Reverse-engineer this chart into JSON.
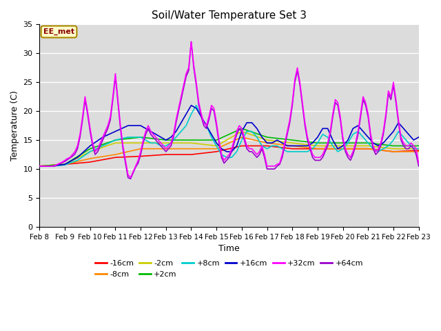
{
  "title": "Soil/Water Temperature Set 3",
  "xlabel": "Time",
  "ylabel": "Temperature (C)",
  "ylim": [
    0,
    35
  ],
  "background_color": "#dcdcdc",
  "annotation": "EE_met",
  "legend": [
    {
      "label": "-16cm",
      "color": "#ff0000"
    },
    {
      "label": "-8cm",
      "color": "#ff8800"
    },
    {
      "label": "-2cm",
      "color": "#cccc00"
    },
    {
      "label": "+2cm",
      "color": "#00bb00"
    },
    {
      "label": "+8cm",
      "color": "#00cccc"
    },
    {
      "label": "+16cm",
      "color": "#0000cc"
    },
    {
      "label": "+32cm",
      "color": "#ff00ff"
    },
    {
      "label": "+64cm",
      "color": "#9900cc"
    }
  ],
  "x_tick_labels": [
    "Feb 8",
    "Feb 9",
    "Feb 10",
    "Feb 11",
    "Feb 12",
    "Feb 13",
    "Feb 14",
    "Feb 15",
    "Feb 16",
    "Feb 17",
    "Feb 18",
    "Feb 19",
    "Feb 20",
    "Feb 21",
    "Feb 22",
    "Feb 23"
  ],
  "series": {
    "-16cm": {
      "color": "#ff0000",
      "x": [
        0,
        1,
        2,
        3,
        4,
        5,
        6,
        7,
        8,
        9,
        10,
        11,
        12,
        13,
        14,
        15
      ],
      "y": [
        10.5,
        10.8,
        11.2,
        12.0,
        12.2,
        12.5,
        12.5,
        13.0,
        14.0,
        14.0,
        13.5,
        13.5,
        13.5,
        13.5,
        13.0,
        13.2
      ]
    },
    "-8cm": {
      "color": "#ff8800",
      "x": [
        0,
        1,
        2,
        3,
        4,
        5,
        6,
        7,
        8,
        9,
        10,
        11,
        12,
        13,
        14,
        15
      ],
      "y": [
        10.5,
        10.8,
        11.8,
        12.5,
        13.5,
        13.5,
        13.5,
        13.5,
        15.5,
        14.5,
        14.0,
        13.5,
        13.5,
        13.5,
        13.0,
        13.0
      ]
    },
    "-2cm": {
      "color": "#cccc00",
      "x": [
        0,
        1,
        2,
        3,
        4,
        5,
        6,
        7,
        8,
        9,
        10,
        11,
        12,
        13,
        14,
        15
      ],
      "y": [
        10.5,
        10.8,
        13.0,
        14.5,
        14.5,
        14.5,
        14.5,
        14.0,
        16.5,
        15.0,
        14.5,
        14.0,
        14.0,
        14.0,
        13.5,
        13.5
      ]
    },
    "+2cm": {
      "color": "#00bb00",
      "x": [
        0,
        1,
        2,
        3,
        4,
        5,
        6,
        7,
        8,
        9,
        10,
        11,
        12,
        13,
        14,
        15
      ],
      "y": [
        10.5,
        10.8,
        13.5,
        15.0,
        15.5,
        15.0,
        15.0,
        15.0,
        17.0,
        15.5,
        15.0,
        14.5,
        14.5,
        14.5,
        14.0,
        14.0
      ]
    },
    "+8cm": {
      "color": "#00cccc",
      "x": [
        0,
        0.5,
        1.0,
        1.5,
        2.0,
        2.5,
        3.0,
        3.5,
        4.0,
        4.2,
        4.4,
        4.6,
        4.8,
        5.0,
        5.2,
        5.4,
        5.6,
        5.8,
        6.0,
        6.2,
        6.4,
        6.6,
        6.8,
        7.0,
        7.2,
        7.4,
        7.6,
        7.8,
        8.0,
        8.2,
        8.4,
        8.6,
        8.8,
        9.0,
        9.2,
        9.4,
        9.6,
        9.8,
        10.0,
        10.2,
        10.4,
        10.6,
        10.8,
        11.0,
        11.2,
        11.4,
        11.6,
        11.8,
        12.0,
        12.2,
        12.4,
        12.6,
        12.8,
        13.0,
        13.2,
        13.4,
        13.6,
        13.8,
        14.0,
        14.2,
        14.4,
        14.6,
        14.8,
        15.0
      ],
      "y": [
        10.5,
        10.5,
        10.7,
        11.5,
        13.0,
        14.0,
        15.0,
        15.5,
        15.5,
        15.0,
        14.5,
        14.5,
        14.0,
        14.0,
        14.5,
        15.5,
        16.5,
        17.5,
        19.5,
        21.0,
        19.0,
        17.5,
        15.5,
        14.0,
        12.5,
        12.0,
        12.0,
        13.0,
        15.0,
        16.5,
        16.5,
        15.5,
        14.0,
        13.5,
        14.0,
        14.0,
        13.5,
        13.0,
        13.0,
        13.0,
        13.0,
        13.0,
        13.5,
        14.5,
        16.0,
        15.5,
        14.0,
        13.0,
        13.5,
        14.5,
        16.0,
        16.5,
        15.5,
        14.5,
        13.5,
        13.0,
        13.5,
        14.0,
        15.0,
        16.5,
        15.5,
        14.5,
        13.5,
        13.5
      ]
    },
    "+16cm": {
      "color": "#0000cc",
      "x": [
        0,
        0.5,
        1.0,
        1.5,
        2.0,
        2.5,
        3.0,
        3.5,
        4.0,
        4.2,
        4.4,
        4.6,
        4.8,
        5.0,
        5.2,
        5.4,
        5.6,
        5.8,
        6.0,
        6.2,
        6.4,
        6.6,
        6.8,
        7.0,
        7.2,
        7.4,
        7.6,
        7.8,
        8.0,
        8.2,
        8.4,
        8.6,
        8.8,
        9.0,
        9.2,
        9.4,
        9.6,
        9.8,
        10.0,
        10.2,
        10.4,
        10.6,
        10.8,
        11.0,
        11.2,
        11.4,
        11.6,
        11.8,
        12.0,
        12.2,
        12.4,
        12.6,
        12.8,
        13.0,
        13.2,
        13.4,
        13.6,
        13.8,
        14.0,
        14.2,
        14.4,
        14.6,
        14.8,
        15.0
      ],
      "y": [
        10.5,
        10.5,
        10.8,
        12.0,
        14.0,
        15.5,
        16.5,
        17.5,
        17.5,
        17.0,
        16.5,
        16.0,
        15.5,
        15.0,
        15.5,
        16.5,
        18.0,
        19.5,
        21.0,
        20.5,
        19.0,
        17.5,
        16.0,
        14.5,
        13.5,
        13.0,
        13.0,
        14.0,
        16.5,
        18.0,
        18.0,
        17.0,
        15.5,
        14.5,
        14.5,
        15.0,
        14.5,
        14.0,
        14.0,
        14.0,
        14.0,
        14.0,
        14.5,
        15.5,
        17.0,
        17.0,
        15.0,
        13.5,
        14.0,
        15.0,
        17.0,
        17.5,
        16.5,
        15.5,
        14.5,
        14.0,
        14.5,
        15.5,
        16.5,
        18.0,
        17.0,
        16.0,
        15.0,
        15.5
      ]
    },
    "+32cm": {
      "color": "#ff00ff",
      "x": [
        0,
        0.1,
        0.2,
        0.3,
        0.4,
        0.5,
        0.6,
        0.7,
        0.8,
        0.9,
        1.0,
        1.1,
        1.2,
        1.3,
        1.4,
        1.5,
        1.6,
        1.7,
        1.8,
        1.9,
        2.0,
        2.1,
        2.2,
        2.3,
        2.4,
        2.5,
        2.6,
        2.7,
        2.8,
        2.9,
        3.0,
        3.1,
        3.2,
        3.3,
        3.4,
        3.5,
        3.6,
        3.7,
        3.8,
        3.9,
        4.0,
        4.1,
        4.2,
        4.3,
        4.4,
        4.5,
        4.6,
        4.7,
        4.8,
        4.9,
        5.0,
        5.1,
        5.2,
        5.3,
        5.4,
        5.5,
        5.6,
        5.7,
        5.8,
        5.9,
        6.0,
        6.1,
        6.2,
        6.3,
        6.4,
        6.5,
        6.6,
        6.7,
        6.8,
        6.9,
        7.0,
        7.1,
        7.2,
        7.3,
        7.4,
        7.5,
        7.6,
        7.7,
        7.8,
        7.9,
        8.0,
        8.1,
        8.2,
        8.3,
        8.4,
        8.5,
        8.6,
        8.7,
        8.8,
        8.9,
        9.0,
        9.1,
        9.2,
        9.3,
        9.4,
        9.5,
        9.6,
        9.7,
        9.8,
        9.9,
        10.0,
        10.1,
        10.2,
        10.3,
        10.4,
        10.5,
        10.6,
        10.7,
        10.8,
        10.9,
        11.0,
        11.1,
        11.2,
        11.3,
        11.4,
        11.5,
        11.6,
        11.7,
        11.8,
        11.9,
        12.0,
        12.1,
        12.2,
        12.3,
        12.4,
        12.5,
        12.6,
        12.7,
        12.8,
        12.9,
        13.0,
        13.1,
        13.2,
        13.3,
        13.4,
        13.5,
        13.6,
        13.7,
        13.8,
        13.9,
        14.0,
        14.1,
        14.2,
        14.3,
        14.4,
        14.5,
        14.6,
        14.7,
        14.8,
        14.9,
        15.0
      ],
      "y": [
        10.5,
        10.5,
        10.5,
        10.5,
        10.5,
        10.5,
        10.6,
        10.8,
        11.0,
        11.2,
        11.5,
        11.8,
        12.0,
        12.5,
        13.0,
        14.0,
        16.0,
        19.0,
        22.5,
        20.0,
        17.0,
        14.5,
        13.0,
        13.5,
        14.5,
        15.5,
        16.5,
        17.5,
        19.0,
        22.5,
        26.5,
        22.0,
        17.5,
        14.0,
        11.5,
        9.0,
        8.5,
        9.5,
        10.5,
        11.5,
        13.0,
        15.0,
        16.5,
        17.5,
        16.5,
        16.0,
        15.5,
        15.0,
        14.5,
        14.0,
        13.5,
        14.0,
        14.5,
        16.0,
        18.5,
        20.5,
        22.5,
        24.5,
        26.5,
        27.5,
        32.0,
        28.0,
        25.0,
        21.5,
        19.5,
        18.0,
        17.5,
        19.0,
        21.0,
        20.5,
        18.0,
        15.0,
        12.5,
        11.5,
        12.0,
        12.5,
        13.5,
        15.0,
        16.5,
        17.5,
        17.0,
        15.5,
        14.0,
        13.5,
        13.5,
        13.0,
        12.5,
        13.0,
        14.0,
        12.5,
        10.5,
        10.5,
        10.5,
        10.5,
        10.8,
        11.0,
        12.5,
        14.5,
        16.5,
        18.5,
        21.5,
        25.5,
        27.5,
        25.0,
        21.5,
        18.0,
        15.5,
        14.0,
        12.5,
        12.0,
        12.0,
        12.0,
        12.5,
        13.5,
        14.5,
        16.5,
        19.5,
        22.0,
        21.5,
        19.0,
        15.5,
        13.5,
        12.5,
        12.0,
        13.0,
        14.5,
        16.5,
        19.5,
        22.5,
        21.5,
        19.5,
        16.0,
        14.0,
        13.0,
        13.5,
        14.5,
        16.5,
        19.5,
        23.5,
        22.5,
        25.0,
        22.0,
        18.5,
        15.5,
        14.5,
        14.0,
        14.0,
        14.5,
        14.0,
        13.5,
        11.0
      ]
    },
    "+64cm": {
      "color": "#9900cc",
      "x": [
        0,
        0.1,
        0.2,
        0.3,
        0.4,
        0.5,
        0.6,
        0.7,
        0.8,
        0.9,
        1.0,
        1.1,
        1.2,
        1.3,
        1.4,
        1.5,
        1.6,
        1.7,
        1.8,
        1.9,
        2.0,
        2.1,
        2.2,
        2.3,
        2.4,
        2.5,
        2.6,
        2.7,
        2.8,
        2.9,
        3.0,
        3.1,
        3.2,
        3.3,
        3.4,
        3.5,
        3.6,
        3.7,
        3.8,
        3.9,
        4.0,
        4.1,
        4.2,
        4.3,
        4.4,
        4.5,
        4.6,
        4.7,
        4.8,
        4.9,
        5.0,
        5.1,
        5.2,
        5.3,
        5.4,
        5.5,
        5.6,
        5.7,
        5.8,
        5.9,
        6.0,
        6.1,
        6.2,
        6.3,
        6.4,
        6.5,
        6.6,
        6.7,
        6.8,
        6.9,
        7.0,
        7.1,
        7.2,
        7.3,
        7.4,
        7.5,
        7.6,
        7.7,
        7.8,
        7.9,
        8.0,
        8.1,
        8.2,
        8.3,
        8.4,
        8.5,
        8.6,
        8.7,
        8.8,
        8.9,
        9.0,
        9.1,
        9.2,
        9.3,
        9.4,
        9.5,
        9.6,
        9.7,
        9.8,
        9.9,
        10.0,
        10.1,
        10.2,
        10.3,
        10.4,
        10.5,
        10.6,
        10.7,
        10.8,
        10.9,
        11.0,
        11.1,
        11.2,
        11.3,
        11.4,
        11.5,
        11.6,
        11.7,
        11.8,
        11.9,
        12.0,
        12.1,
        12.2,
        12.3,
        12.4,
        12.5,
        12.6,
        12.7,
        12.8,
        12.9,
        13.0,
        13.1,
        13.2,
        13.3,
        13.4,
        13.5,
        13.6,
        13.7,
        13.8,
        13.9,
        14.0,
        14.1,
        14.2,
        14.3,
        14.4,
        14.5,
        14.6,
        14.7,
        14.8,
        14.9,
        15.0
      ],
      "y": [
        10.5,
        10.5,
        10.5,
        10.5,
        10.5,
        10.5,
        10.5,
        10.7,
        10.9,
        11.1,
        11.3,
        11.6,
        11.9,
        12.2,
        12.6,
        13.5,
        15.5,
        18.5,
        22.0,
        19.5,
        16.5,
        14.0,
        12.5,
        13.0,
        14.0,
        15.0,
        16.0,
        17.0,
        18.5,
        22.0,
        26.0,
        21.5,
        17.0,
        13.5,
        11.0,
        8.5,
        8.3,
        9.3,
        10.3,
        11.0,
        12.5,
        14.5,
        16.0,
        17.0,
        16.0,
        15.5,
        15.0,
        14.5,
        14.0,
        13.5,
        13.0,
        13.5,
        14.0,
        15.5,
        18.0,
        20.0,
        22.0,
        24.0,
        26.0,
        27.0,
        32.0,
        27.5,
        24.5,
        21.0,
        19.0,
        17.5,
        17.0,
        18.5,
        20.5,
        20.0,
        17.5,
        14.5,
        12.0,
        11.0,
        11.5,
        12.0,
        13.0,
        14.5,
        16.0,
        17.0,
        16.5,
        15.0,
        13.5,
        13.0,
        13.0,
        12.5,
        12.0,
        12.5,
        13.5,
        12.0,
        10.0,
        10.0,
        10.0,
        10.0,
        10.5,
        10.8,
        12.0,
        14.0,
        16.0,
        18.0,
        21.0,
        25.0,
        27.0,
        24.5,
        21.0,
        17.5,
        15.0,
        13.5,
        12.0,
        11.5,
        11.5,
        11.5,
        12.0,
        13.0,
        14.0,
        16.0,
        19.0,
        21.5,
        21.0,
        18.5,
        15.0,
        13.0,
        12.0,
        11.5,
        12.5,
        14.0,
        16.0,
        19.0,
        22.0,
        21.0,
        19.0,
        15.5,
        13.5,
        12.5,
        13.0,
        14.0,
        16.0,
        19.0,
        23.0,
        22.0,
        24.5,
        21.5,
        18.0,
        15.0,
        14.0,
        13.5,
        13.5,
        14.0,
        13.5,
        12.5,
        10.5
      ]
    }
  }
}
